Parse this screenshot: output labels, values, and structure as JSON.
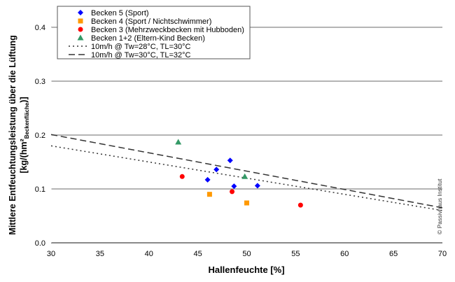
{
  "chart_data": {
    "type": "scatter",
    "xlabel": "Hallenfeuchte [%]",
    "ylabel_line1": "Mittlere Entfeuchtungsleistung über die Lüftung",
    "ylabel_line2_pre": "[kg/(hm²",
    "ylabel_line2_sub": "Beckenfläche",
    "ylabel_line2_post": ")]",
    "xlim": [
      30,
      70
    ],
    "ylim": [
      0,
      0.4
    ],
    "xticks": [
      "30",
      "35",
      "40",
      "45",
      "50",
      "55",
      "60",
      "65",
      "70"
    ],
    "yticks": [
      "0.0",
      "0.1",
      "0.2",
      "0.3",
      "0.4"
    ],
    "grid": "horizontal",
    "legend_position": "top-left",
    "copyright": "© Passivhaus Institut",
    "series": [
      {
        "name": "Becken 5 (Sport)",
        "marker": "diamond",
        "color": "#0000ff",
        "points": [
          [
            46.0,
            0.117
          ],
          [
            46.9,
            0.136
          ],
          [
            48.3,
            0.153
          ],
          [
            48.7,
            0.105
          ],
          [
            51.1,
            0.106
          ]
        ]
      },
      {
        "name": "Becken 4 (Sport / Nichtschwimmer)",
        "marker": "square",
        "color": "#ff9900",
        "points": [
          [
            46.2,
            0.09
          ],
          [
            50.0,
            0.074
          ]
        ]
      },
      {
        "name": "Becken 3 (Mehrzweckbecken mit Hubboden)",
        "marker": "circle",
        "color": "#ff0000",
        "points": [
          [
            43.4,
            0.123
          ],
          [
            48.5,
            0.095
          ],
          [
            55.5,
            0.07
          ]
        ]
      },
      {
        "name": "Becken 1+2 (Eltern-Kind Becken)",
        "marker": "triangle",
        "color": "#339966",
        "points": [
          [
            43.0,
            0.187
          ],
          [
            49.8,
            0.123
          ]
        ]
      }
    ],
    "lines": [
      {
        "name": "10m/h @ Tw=28°C, TL=30°C",
        "style": "dotted",
        "color": "#333333",
        "points": [
          [
            30,
            0.18
          ],
          [
            70,
            0.06
          ]
        ]
      },
      {
        "name": "10m/h @ Tw=30°C, TL=32°C",
        "style": "dashed",
        "color": "#333333",
        "points": [
          [
            30,
            0.201
          ],
          [
            70,
            0.065
          ]
        ]
      }
    ]
  }
}
